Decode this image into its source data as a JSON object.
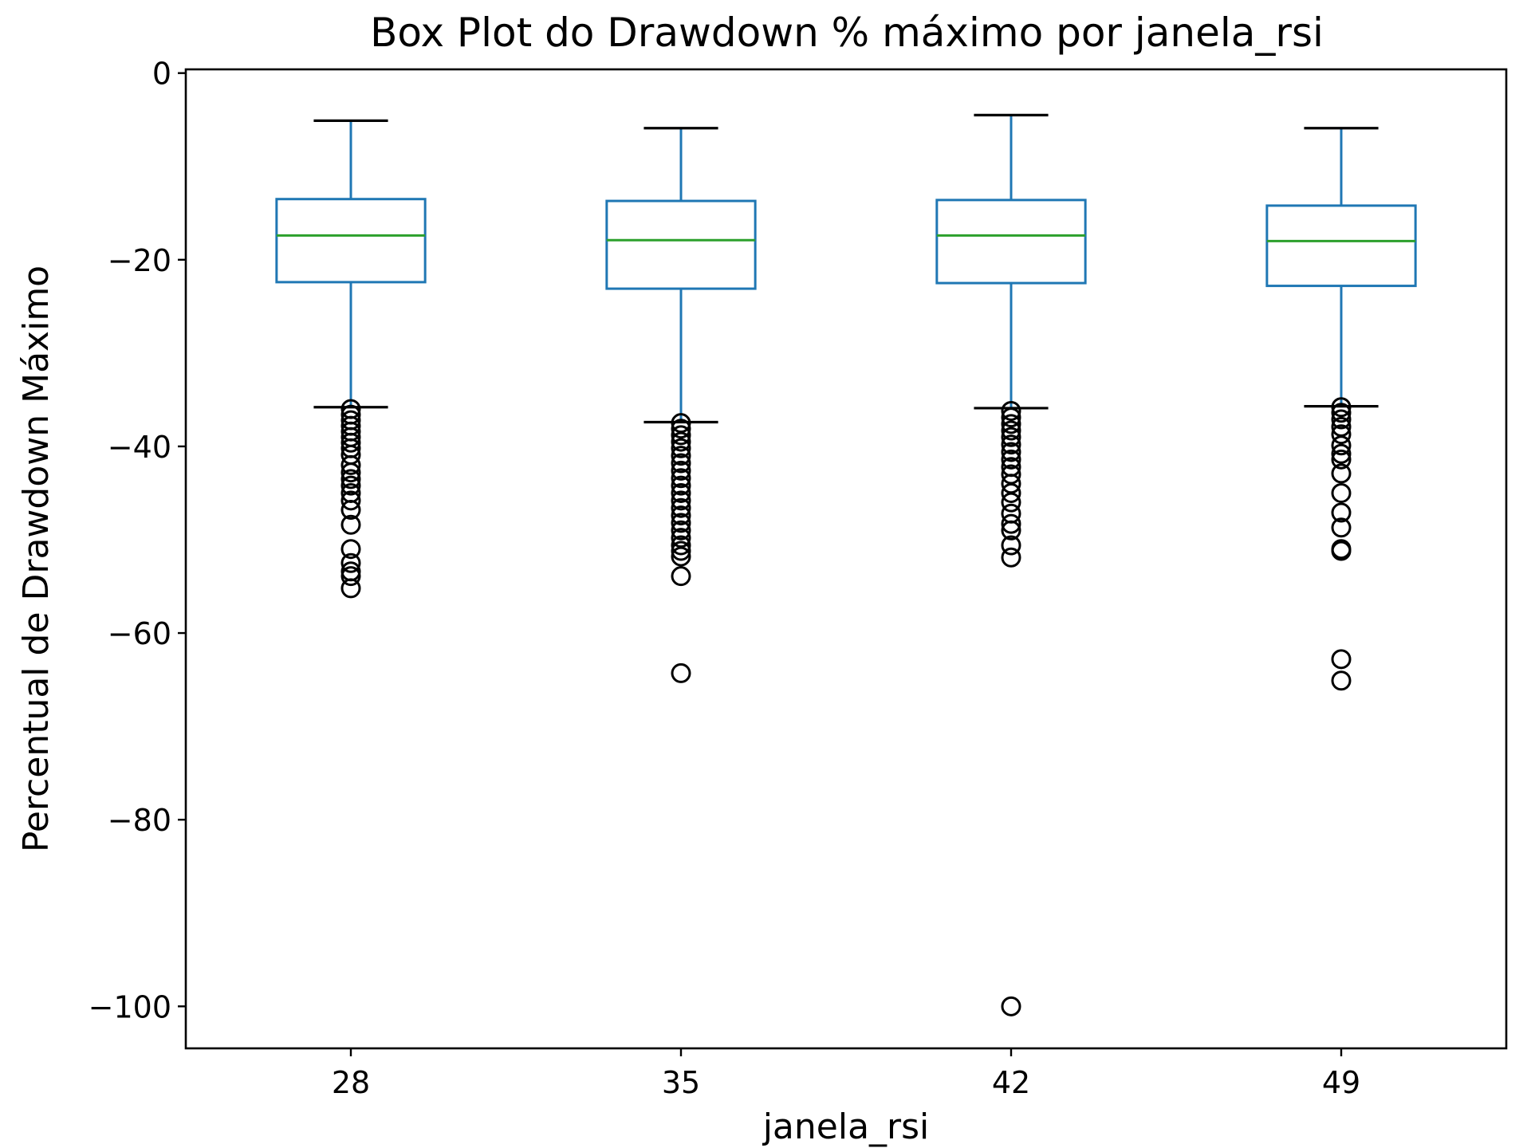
{
  "chart_data": {
    "type": "box",
    "title": "Box Plot do Drawdown % máximo por janela_rsi",
    "xlabel": "janela_rsi",
    "ylabel": "Percentual de Drawdown Máximo",
    "categories": [
      "28",
      "35",
      "42",
      "49"
    ],
    "ylim": [
      -104.5,
      0.4
    ],
    "yticks": [
      0,
      -20,
      -40,
      -60,
      -80,
      -100
    ],
    "ytick_labels": [
      "0",
      "−20",
      "−40",
      "−60",
      "−80",
      "−100"
    ],
    "grid": false,
    "colors": {
      "box": "#1f77b4",
      "median": "#2ca02c",
      "whisker_cap": "#000000",
      "flier": "#000000"
    },
    "boxes": [
      {
        "category": "28",
        "whisker_high": -5.1,
        "q3": -13.5,
        "median": -17.4,
        "q1": -22.4,
        "whisker_low": -35.8,
        "fliers": [
          -36.0,
          -36.6,
          -37.2,
          -37.8,
          -38.4,
          -39.0,
          -39.6,
          -40.2,
          -40.9,
          -42.0,
          -42.8,
          -43.5,
          -44.2,
          -45.0,
          -45.8,
          -46.8,
          -48.4,
          -51.0,
          -52.5,
          -53.4,
          -53.9,
          -55.2
        ]
      },
      {
        "category": "35",
        "whisker_high": -5.9,
        "q3": -13.7,
        "median": -17.9,
        "q1": -23.1,
        "whisker_low": -37.4,
        "fliers": [
          -37.5,
          -38.1,
          -38.8,
          -39.5,
          -40.2,
          -41.0,
          -41.8,
          -42.6,
          -43.4,
          -44.2,
          -45.0,
          -45.8,
          -46.6,
          -47.4,
          -48.2,
          -49.0,
          -49.8,
          -50.6,
          -51.2,
          -51.8,
          -53.9,
          -64.3
        ]
      },
      {
        "category": "42",
        "whisker_high": -4.5,
        "q3": -13.6,
        "median": -17.4,
        "q1": -22.5,
        "whisker_low": -35.9,
        "fliers": [
          -36.2,
          -36.9,
          -37.6,
          -38.3,
          -39.0,
          -39.8,
          -40.6,
          -41.4,
          -42.2,
          -43.0,
          -44.0,
          -45.0,
          -46.0,
          -47.2,
          -48.3,
          -49.0,
          -50.6,
          -51.9,
          -100.0
        ]
      },
      {
        "category": "49",
        "whisker_high": -5.9,
        "q3": -14.2,
        "median": -18.0,
        "q1": -22.8,
        "whisker_low": -35.7,
        "fliers": [
          -35.8,
          -36.4,
          -37.1,
          -37.9,
          -38.7,
          -39.9,
          -40.8,
          -41.4,
          -42.9,
          -45.0,
          -47.1,
          -48.7,
          -51.0,
          -51.2,
          -62.8,
          -65.1
        ]
      }
    ]
  }
}
